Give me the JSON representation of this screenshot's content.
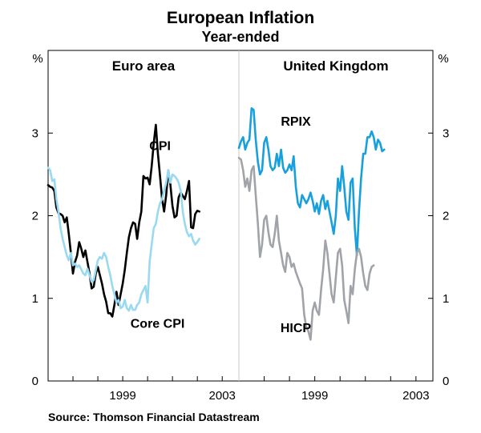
{
  "chart_data": {
    "type": "line",
    "title": "European Inflation",
    "subtitle": "Year-ended",
    "ylabel_left": "%",
    "ylabel_right": "%",
    "ylim": [
      0,
      4
    ],
    "yticks": [
      0,
      1,
      2,
      3
    ],
    "source": "Source: Thomson Financial Datastream",
    "colors": {
      "cpi": "#000000",
      "core_cpi": "#99d9f2",
      "rpix": "#18a0dc",
      "hicp": "#a0a4a8",
      "axis": "#000000",
      "divider": "#c8c8c8"
    },
    "panels": [
      {
        "name": "Euro area",
        "xlim": [
          1996.0,
          2003.67
        ],
        "xticks": [
          {
            "value": 1999.0,
            "label": "1999"
          },
          {
            "value": 2003.0,
            "label": "2003"
          }
        ],
        "series": [
          {
            "name": "CPI",
            "color_key": "cpi",
            "label_pos": [
              2000.5,
              2.85
            ],
            "x_start": 1996.0,
            "x_step": 0.0833,
            "values": [
              2.37,
              2.35,
              2.34,
              2.3,
              2.1,
              2.03,
              2.02,
              2.0,
              1.92,
              1.98,
              1.78,
              1.55,
              1.3,
              1.44,
              1.52,
              1.68,
              1.6,
              1.5,
              1.58,
              1.44,
              1.3,
              1.12,
              1.14,
              1.3,
              1.38,
              1.28,
              1.18,
              1.05,
              0.96,
              0.82,
              0.82,
              0.78,
              0.92,
              1.08,
              0.92,
              1.05,
              1.18,
              1.34,
              1.55,
              1.74,
              1.85,
              1.92,
              1.9,
              1.72,
              1.92,
              2.05,
              2.48,
              2.45,
              2.46,
              2.38,
              2.6,
              2.88,
              3.1,
              2.75,
              2.48,
              2.2,
              2.05,
              2.25,
              2.55,
              2.38,
              2.12,
              1.98,
              2.0,
              2.22,
              2.28,
              2.24,
              2.2,
              2.3,
              2.42,
              1.86,
              1.85,
              2.02,
              2.06,
              2.05
            ]
          },
          {
            "name": "Core CPI",
            "color_key": "core_cpi",
            "label_pos": [
              2000.4,
              0.7
            ],
            "x_start": 1996.0,
            "x_step": 0.0833,
            "values": [
              2.58,
              2.55,
              2.42,
              2.44,
              2.2,
              2.05,
              1.85,
              1.72,
              1.62,
              1.52,
              1.46,
              1.55,
              1.4,
              1.42,
              1.38,
              1.4,
              1.35,
              1.3,
              1.28,
              1.36,
              1.28,
              1.2,
              1.22,
              1.34,
              1.46,
              1.5,
              1.48,
              1.55,
              1.5,
              1.38,
              1.28,
              1.15,
              1.05,
              0.95,
              0.98,
              0.88,
              0.9,
              0.98,
              0.88,
              0.85,
              0.92,
              0.86,
              0.86,
              0.92,
              0.95,
              1.05,
              1.1,
              1.15,
              0.95,
              1.45,
              1.65,
              1.85,
              1.9,
              2.05,
              2.15,
              2.2,
              2.3,
              2.4,
              2.55,
              2.4,
              2.5,
              2.48,
              2.45,
              2.4,
              2.3,
              2.05,
              1.9,
              1.8,
              1.75,
              1.78,
              1.7,
              1.65,
              1.68,
              1.72
            ]
          }
        ]
      },
      {
        "name": "United Kingdom",
        "xlim": [
          1996.0,
          2003.67
        ],
        "xticks": [
          {
            "value": 1999.0,
            "label": "1999"
          },
          {
            "value": 2003.0,
            "label": "2003"
          }
        ],
        "series": [
          {
            "name": "RPIX",
            "color_key": "rpix",
            "label_pos": [
              1998.25,
              3.15
            ],
            "x_start": 1996.0,
            "x_step": 0.0833,
            "values": [
              2.82,
              2.9,
              2.95,
              2.8,
              2.88,
              2.92,
              3.3,
              3.28,
              2.92,
              2.65,
              2.5,
              2.55,
              2.88,
              2.95,
              2.8,
              2.6,
              2.55,
              2.58,
              2.75,
              2.6,
              2.8,
              2.58,
              2.52,
              2.55,
              2.62,
              2.55,
              2.72,
              2.35,
              2.15,
              2.1,
              2.25,
              2.2,
              2.15,
              2.2,
              2.28,
              2.18,
              2.05,
              2.15,
              2.02,
              2.18,
              2.25,
              2.08,
              2.18,
              2.05,
              1.92,
              1.78,
              2.0,
              2.45,
              2.3,
              2.6,
              2.35,
              2.05,
              1.95,
              2.4,
              2.45,
              1.85,
              1.52,
              2.05,
              2.45,
              2.75,
              2.75,
              2.95,
              2.95,
              3.02,
              2.95,
              2.8,
              2.92,
              2.88,
              2.78,
              2.8
            ]
          },
          {
            "name": "HICP",
            "color_key": "hicp",
            "label_pos": [
              1998.25,
              0.65
            ],
            "x_start": 1996.0,
            "x_step": 0.0833,
            "values": [
              2.7,
              2.68,
              2.55,
              2.35,
              2.45,
              2.3,
              2.55,
              2.6,
              2.25,
              1.9,
              1.5,
              1.65,
              1.95,
              2.0,
              1.8,
              1.65,
              1.62,
              1.78,
              2.0,
              1.7,
              1.55,
              1.4,
              1.32,
              1.55,
              1.5,
              1.38,
              1.42,
              1.32,
              1.25,
              1.18,
              1.12,
              0.8,
              0.65,
              0.6,
              0.5,
              0.85,
              0.95,
              0.85,
              0.8,
              1.1,
              1.35,
              1.7,
              1.55,
              1.3,
              1.05,
              0.95,
              1.25,
              1.55,
              1.6,
              1.4,
              0.98,
              0.85,
              0.7,
              1.15,
              1.05,
              1.35,
              1.55,
              1.6,
              1.5,
              1.3,
              1.15,
              1.1,
              1.3,
              1.38,
              1.4
            ]
          }
        ]
      }
    ]
  }
}
